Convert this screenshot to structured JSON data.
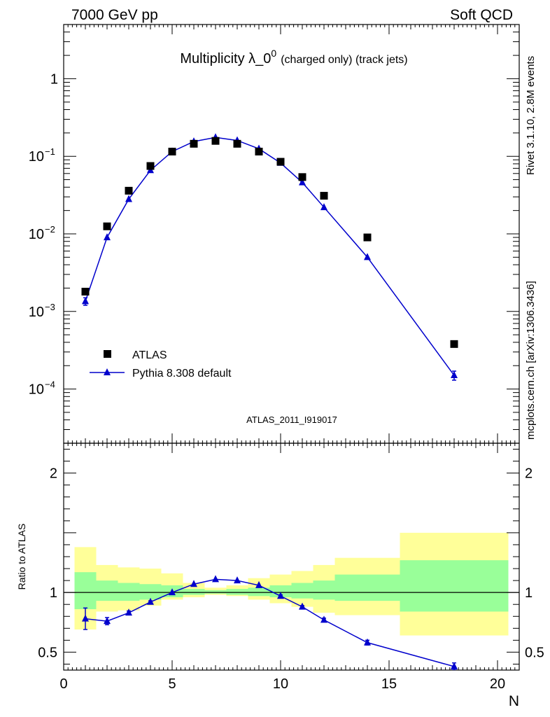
{
  "header": {
    "left": "7000 GeV pp",
    "right": "Soft QCD"
  },
  "side": {
    "rivet": "Rivet 3.1.10,  2.8M events",
    "mcplots": "mcplots.cern.ch [arXiv:1306.3436]"
  },
  "colors": {
    "band_inner": "#99ff99",
    "band_outer": "#ffff99",
    "mc": "#0000cc",
    "data": "#000000",
    "analysis_label": "#999999"
  },
  "chart_data": [
    {
      "type": "scatter",
      "title_main": "Multiplicity λ_0",
      "title_sup": "0",
      "title_small": "(charged only) (track jets)",
      "analysis": "ATLAS_2011_I919017",
      "ylog": true,
      "xlim": [
        0,
        21
      ],
      "ylim": [
        2e-05,
        5
      ],
      "y_ticks": [
        {
          "v": 1,
          "label": "1",
          "exp": ""
        },
        {
          "v": 0.1,
          "label": "10",
          "exp": "−1"
        },
        {
          "v": 0.01,
          "label": "10",
          "exp": "−2"
        },
        {
          "v": 0.001,
          "label": "10",
          "exp": "−3"
        },
        {
          "v": 0.0001,
          "label": "10",
          "exp": "−4"
        }
      ],
      "legend": {
        "position": "bottom-left",
        "entries": [
          "ATLAS",
          "Pythia 8.308 default"
        ]
      },
      "series": [
        {
          "name": "ATLAS",
          "marker": "square",
          "x": [
            1,
            2,
            3,
            4,
            5,
            6,
            7,
            8,
            9,
            10,
            11,
            12,
            14,
            18
          ],
          "y": [
            0.0018,
            0.0125,
            0.036,
            0.075,
            0.115,
            0.145,
            0.158,
            0.145,
            0.115,
            0.085,
            0.054,
            0.031,
            0.009,
            0.00038
          ]
        },
        {
          "name": "Pythia 8.308 default",
          "marker": "triangle",
          "x": [
            1,
            2,
            3,
            4,
            5,
            6,
            7,
            8,
            9,
            10,
            11,
            12,
            14,
            18
          ],
          "y": [
            0.00135,
            0.009,
            0.028,
            0.066,
            0.115,
            0.155,
            0.175,
            0.16,
            0.125,
            0.082,
            0.046,
            0.022,
            0.005,
            0.00015
          ],
          "yerr": [
            0.00015,
            0,
            0,
            0,
            0,
            0,
            0,
            0,
            0,
            0,
            0,
            0,
            0,
            2e-05
          ]
        }
      ]
    },
    {
      "type": "scatter",
      "ylabel": "Ratio to ATLAS",
      "xlabel": "N",
      "xlim": [
        0,
        21
      ],
      "ylim": [
        0.35,
        2.25
      ],
      "x_ticks": [
        0,
        5,
        10,
        15,
        20
      ],
      "y_ticks": [
        0.5,
        1,
        2
      ],
      "reference_line": 1,
      "bands": [
        {
          "x0": 0.5,
          "x1": 1.5,
          "inner": [
            0.86,
            1.17
          ],
          "outer": [
            0.69,
            1.38
          ]
        },
        {
          "x0": 1.5,
          "x1": 2.5,
          "inner": [
            0.93,
            1.1
          ],
          "outer": [
            0.84,
            1.23
          ]
        },
        {
          "x0": 2.5,
          "x1": 3.5,
          "inner": [
            0.93,
            1.08
          ],
          "outer": [
            0.85,
            1.21
          ]
        },
        {
          "x0": 3.5,
          "x1": 4.5,
          "inner": [
            0.94,
            1.07
          ],
          "outer": [
            0.89,
            1.2
          ]
        },
        {
          "x0": 4.5,
          "x1": 5.5,
          "inner": [
            0.96,
            1.06
          ],
          "outer": [
            0.94,
            1.16
          ]
        },
        {
          "x0": 5.5,
          "x1": 6.5,
          "inner": [
            0.98,
            1.03
          ],
          "outer": [
            0.96,
            1.08
          ]
        },
        {
          "x0": 6.5,
          "x1": 7.5,
          "inner": [
            0.99,
            1.02
          ],
          "outer": [
            0.98,
            1.04
          ]
        },
        {
          "x0": 7.5,
          "x1": 8.5,
          "inner": [
            0.98,
            1.03
          ],
          "outer": [
            0.97,
            1.06
          ]
        },
        {
          "x0": 8.5,
          "x1": 9.5,
          "inner": [
            0.97,
            1.04
          ],
          "outer": [
            0.94,
            1.12
          ]
        },
        {
          "x0": 9.5,
          "x1": 10.5,
          "inner": [
            0.96,
            1.06
          ],
          "outer": [
            0.91,
            1.15
          ]
        },
        {
          "x0": 10.5,
          "x1": 11.5,
          "inner": [
            0.95,
            1.08
          ],
          "outer": [
            0.88,
            1.18
          ]
        },
        {
          "x0": 11.5,
          "x1": 12.5,
          "inner": [
            0.94,
            1.1
          ],
          "outer": [
            0.83,
            1.23
          ]
        },
        {
          "x0": 12.5,
          "x1": 15.5,
          "inner": [
            0.93,
            1.15
          ],
          "outer": [
            0.81,
            1.29
          ]
        },
        {
          "x0": 15.5,
          "x1": 20.5,
          "inner": [
            0.84,
            1.27
          ],
          "outer": [
            0.64,
            1.5
          ]
        }
      ],
      "series": [
        {
          "name": "Pythia 8.308 default",
          "marker": "triangle",
          "x": [
            1,
            2,
            3,
            4,
            5,
            6,
            7,
            8,
            9,
            10,
            11,
            12,
            14,
            18
          ],
          "y": [
            0.78,
            0.76,
            0.83,
            0.92,
            1.0,
            1.07,
            1.11,
            1.1,
            1.06,
            0.97,
            0.88,
            0.77,
            0.58,
            0.38
          ],
          "yerr": [
            0.09,
            0.03,
            0.015,
            0.01,
            0.005,
            0.005,
            0.005,
            0.005,
            0.005,
            0.01,
            0.01,
            0.015,
            0.02,
            0.03
          ]
        }
      ]
    }
  ]
}
